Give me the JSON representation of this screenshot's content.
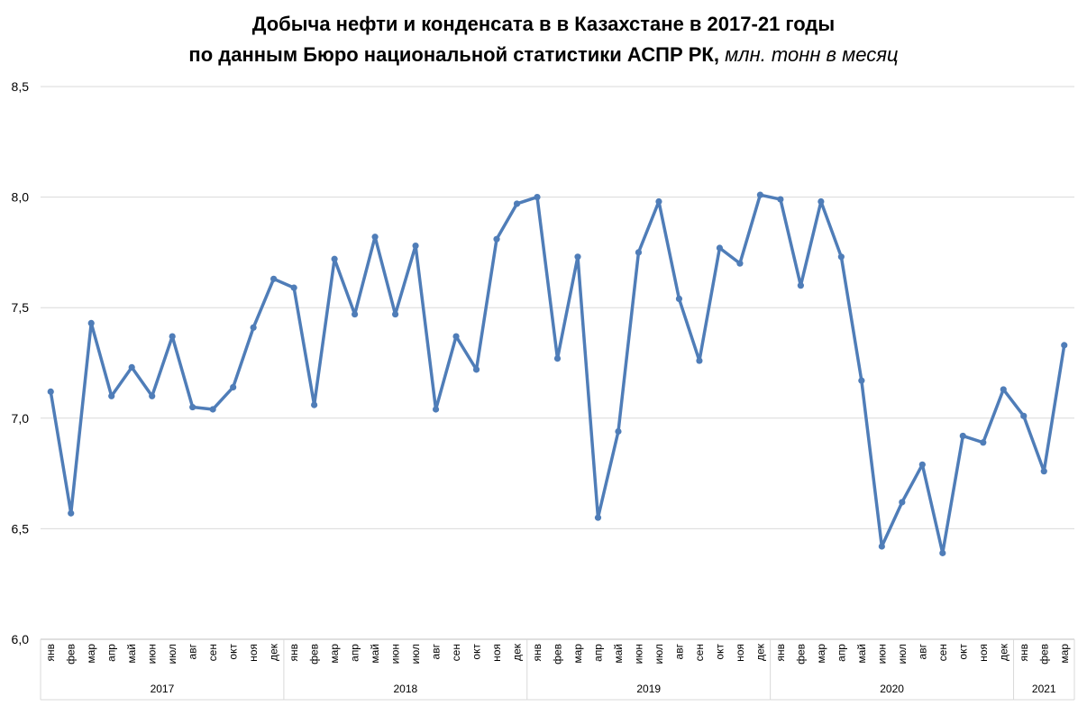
{
  "chart_data": {
    "type": "line",
    "title_line1": "Добыча нефти и конденсата в в Казахстане в 2017-21 годы",
    "title_line2_main": "по данным Бюро национальной статистики АСПР РК",
    "title_line2_sep": ", ",
    "title_unit": "млн. тонн в месяц",
    "ylim": [
      6.0,
      8.5
    ],
    "yticks": [
      "6,0",
      "6,5",
      "7,0",
      "7,5",
      "8,0",
      "8,5"
    ],
    "grid": true,
    "line_color": "#4F7DB8",
    "grid_color": "#d9d9d9",
    "years": [
      {
        "label": "2017",
        "months": 12
      },
      {
        "label": "2018",
        "months": 12
      },
      {
        "label": "2019",
        "months": 12
      },
      {
        "label": "2020",
        "months": 12
      },
      {
        "label": "2021",
        "months": 3
      }
    ],
    "categories": [
      "янв",
      "фев",
      "мар",
      "апр",
      "май",
      "июн",
      "июл",
      "авг",
      "сен",
      "окт",
      "ноя",
      "дек",
      "янв",
      "фев",
      "мар",
      "апр",
      "май",
      "июн",
      "июл",
      "авг",
      "сен",
      "окт",
      "ноя",
      "дек",
      "янв",
      "фев",
      "мар",
      "апр",
      "май",
      "июн",
      "июл",
      "авг",
      "сен",
      "окт",
      "ноя",
      "дек",
      "янв",
      "фев",
      "мар",
      "апр",
      "май",
      "июн",
      "июл",
      "авг",
      "сен",
      "окт",
      "ноя",
      "дек",
      "янв",
      "фев",
      "мар"
    ],
    "series": [
      {
        "values": [
          7.12,
          6.57,
          7.43,
          7.1,
          7.23,
          7.1,
          7.37,
          7.05,
          7.04,
          7.14,
          7.41,
          7.63,
          7.59,
          7.06,
          7.72,
          7.47,
          7.82,
          7.47,
          7.78,
          7.04,
          7.37,
          7.22,
          7.81,
          7.97,
          8.0,
          7.27,
          7.73,
          6.55,
          6.94,
          7.75,
          7.98,
          7.54,
          7.26,
          7.77,
          7.7,
          8.01,
          7.99,
          7.6,
          7.98,
          7.73,
          7.17,
          6.42,
          6.62,
          6.79,
          6.39,
          6.92,
          6.89,
          7.13,
          7.01,
          6.76,
          7.33
        ]
      }
    ]
  }
}
